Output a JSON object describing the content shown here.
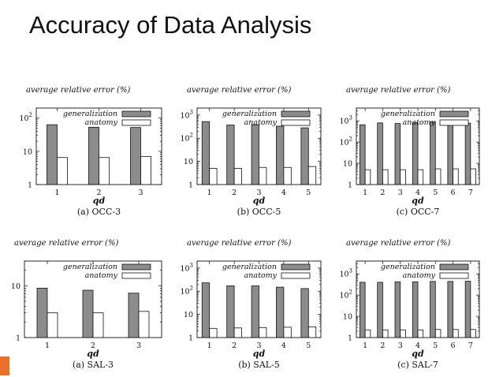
{
  "slide": {
    "title": "Accuracy of Data Analysis"
  },
  "colors": {
    "generalization_fill": "#8c8c8c",
    "anatomy_fill": "#ffffff",
    "accent": "#e8722a"
  },
  "chart_data": [
    {
      "type": "bar",
      "ylabel": "average relative error (%)",
      "xlabel": "qd",
      "caption": "(a) OCC-3",
      "categories": [
        "1",
        "2",
        "3"
      ],
      "yscale": "log",
      "ylim": [
        1,
        200
      ],
      "yticks": [
        {
          "v": 1,
          "base": "1"
        },
        {
          "v": 10,
          "base": "10"
        },
        {
          "v": 100,
          "base": "10",
          "exp": "2"
        }
      ],
      "series": [
        {
          "name": "generalization",
          "values": [
            63,
            53,
            52
          ]
        },
        {
          "name": "anatomy",
          "values": [
            6.5,
            6.5,
            7
          ]
        }
      ]
    },
    {
      "type": "bar",
      "ylabel": "average relative error (%)",
      "xlabel": "qd",
      "caption": "(b) OCC-5",
      "categories": [
        "1",
        "2",
        "3",
        "4",
        "5"
      ],
      "yscale": "log",
      "ylim": [
        1,
        2000
      ],
      "yticks": [
        {
          "v": 1,
          "base": "1"
        },
        {
          "v": 10,
          "base": "10"
        },
        {
          "v": 100,
          "base": "10",
          "exp": "2"
        },
        {
          "v": 1000,
          "base": "10",
          "exp": "3"
        }
      ],
      "series": [
        {
          "name": "generalization",
          "values": [
            520,
            370,
            380,
            330,
            280
          ]
        },
        {
          "name": "anatomy",
          "values": [
            5,
            5,
            5.5,
            5.5,
            6
          ]
        }
      ]
    },
    {
      "type": "bar",
      "ylabel": "average relative error (%)",
      "xlabel": "qd",
      "caption": "(c) OCC-7",
      "categories": [
        "1",
        "2",
        "3",
        "4",
        "5",
        "6",
        "7"
      ],
      "yscale": "log",
      "ylim": [
        1,
        4000
      ],
      "yticks": [
        {
          "v": 1,
          "base": "1"
        },
        {
          "v": 10,
          "base": "10"
        },
        {
          "v": 100,
          "base": "10",
          "exp": "2"
        },
        {
          "v": 1000,
          "base": "10",
          "exp": "3"
        }
      ],
      "series": [
        {
          "name": "generalization",
          "values": [
            650,
            800,
            750,
            820,
            880,
            800,
            780
          ]
        },
        {
          "name": "anatomy",
          "values": [
            5,
            5,
            5,
            5,
            5.5,
            5.5,
            5.5
          ]
        }
      ]
    },
    {
      "type": "bar",
      "ylabel": "average relative error (%)",
      "xlabel": "qd",
      "caption": "(a) SAL-3",
      "categories": [
        "1",
        "2",
        "3"
      ],
      "yscale": "log",
      "ylim": [
        1,
        30
      ],
      "yticks": [
        {
          "v": 1,
          "base": "1"
        },
        {
          "v": 10,
          "base": "10"
        }
      ],
      "series": [
        {
          "name": "generalization",
          "values": [
            9,
            8.2,
            7.2
          ]
        },
        {
          "name": "anatomy",
          "values": [
            3,
            3,
            3.2
          ]
        }
      ]
    },
    {
      "type": "bar",
      "ylabel": "average relative error (%)",
      "xlabel": "qd",
      "caption": "(b) SAL-5",
      "categories": [
        "1",
        "2",
        "3",
        "4",
        "5"
      ],
      "yscale": "log",
      "ylim": [
        1,
        2000
      ],
      "yticks": [
        {
          "v": 1,
          "base": "1"
        },
        {
          "v": 10,
          "base": "10"
        },
        {
          "v": 100,
          "base": "10",
          "exp": "2"
        },
        {
          "v": 1000,
          "base": "10",
          "exp": "3"
        }
      ],
      "series": [
        {
          "name": "generalization",
          "values": [
            230,
            170,
            170,
            150,
            130
          ]
        },
        {
          "name": "anatomy",
          "values": [
            2.5,
            2.6,
            2.7,
            2.8,
            2.9
          ]
        }
      ]
    },
    {
      "type": "bar",
      "ylabel": "average relative error (%)",
      "xlabel": "qd",
      "caption": "(c) SAL-7",
      "categories": [
        "1",
        "2",
        "3",
        "4",
        "5",
        "6",
        "7"
      ],
      "yscale": "log",
      "ylim": [
        1,
        4000
      ],
      "yticks": [
        {
          "v": 1,
          "base": "1"
        },
        {
          "v": 10,
          "base": "10"
        },
        {
          "v": 100,
          "base": "10",
          "exp": "2"
        },
        {
          "v": 1000,
          "base": "10",
          "exp": "3"
        }
      ],
      "series": [
        {
          "name": "generalization",
          "values": [
            400,
            400,
            420,
            420,
            440,
            440,
            450
          ]
        },
        {
          "name": "anatomy",
          "values": [
            2.3,
            2.3,
            2.3,
            2.3,
            2.4,
            2.4,
            2.4
          ]
        }
      ]
    }
  ]
}
